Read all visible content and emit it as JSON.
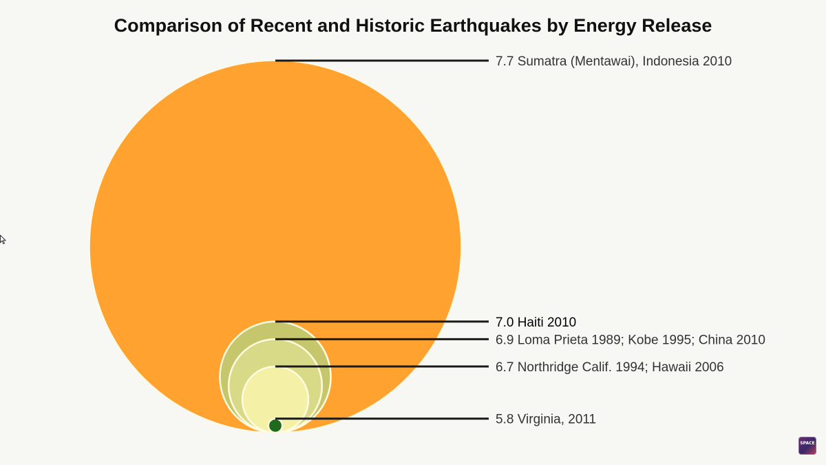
{
  "chart_data": {
    "type": "nested-bubble",
    "title": "Comparison of Recent and Historic Earthquakes by Energy Release",
    "size_encoding": "relative energy release",
    "series": [
      {
        "magnitude": 7.7,
        "label": "7.7 Sumatra (Mentawai), Indonesia 2010",
        "color": "#ffa22f"
      },
      {
        "magnitude": 7.0,
        "label": "7.0 Haiti 2010",
        "color": "#c6c66c"
      },
      {
        "magnitude": 6.9,
        "label": "6.9 Loma Prieta 1989; Kobe 1995; China 2010",
        "color": "#d9da88"
      },
      {
        "magnitude": 6.7,
        "label": "6.7 Northridge Calif. 1994; Hawaii 2006",
        "color": "#f4f0a6"
      },
      {
        "magnitude": 5.8,
        "label": "5.8 Virginia, 2011",
        "color": "#1f6a1f"
      }
    ]
  },
  "logo": {
    "text": "SPACE"
  },
  "icons": {
    "cursor": "mouse-pointer-icon"
  }
}
